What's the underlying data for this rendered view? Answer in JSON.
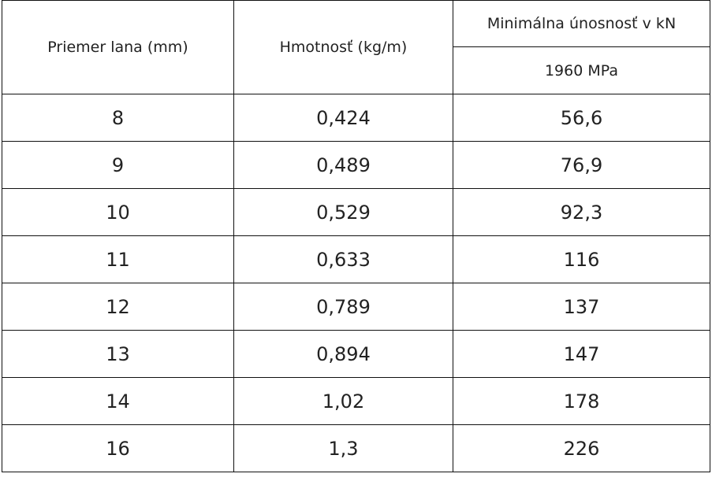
{
  "table": {
    "headers": [
      "Priemer lana (mm)",
      "Hmotnosť (kg/m)",
      "Minimálna únosnosť v kN"
    ],
    "subheader": "1960 MPa",
    "rows": [
      [
        "8",
        "0,424",
        "56,6"
      ],
      [
        "9",
        "0,489",
        "76,9"
      ],
      [
        "10",
        "0,529",
        "92,3"
      ],
      [
        "11",
        "0,633",
        "116"
      ],
      [
        "12",
        "0,789",
        "137"
      ],
      [
        "13",
        "0,894",
        "147"
      ],
      [
        "14",
        "1,02",
        "178"
      ],
      [
        "16",
        "1,3",
        "226"
      ]
    ]
  }
}
